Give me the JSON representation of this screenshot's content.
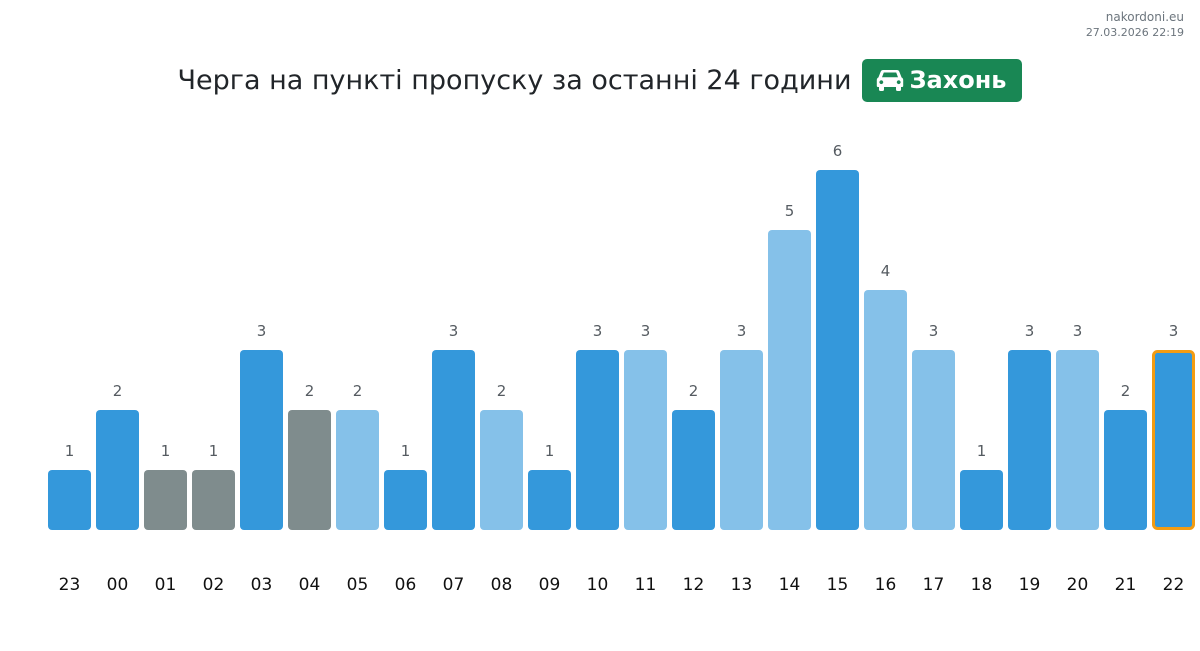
{
  "brand": {
    "site": "nakordoni.eu",
    "timestamp": "27.03.2026 22:19"
  },
  "header": {
    "title": "Черга на пункті пропуску за останні 24 години",
    "checkpoint": "Захонь",
    "checkpoint_icon": "car-icon"
  },
  "colors": {
    "bar_dark": "#3498db",
    "bar_light": "#85c1e9",
    "bar_gray": "#7f8c8d",
    "highlight_border": "#f39c12",
    "badge": "#198754"
  },
  "chart_data": {
    "type": "bar",
    "title": "Черга на пункті пропуску за останні 24 години",
    "xlabel": "",
    "ylabel": "",
    "categories": [
      "23",
      "00",
      "01",
      "02",
      "03",
      "04",
      "05",
      "06",
      "07",
      "08",
      "09",
      "10",
      "11",
      "12",
      "13",
      "14",
      "15",
      "16",
      "17",
      "18",
      "19",
      "20",
      "21",
      "22"
    ],
    "values": [
      1,
      2,
      1,
      1,
      3,
      2,
      2,
      1,
      3,
      2,
      1,
      3,
      3,
      2,
      3,
      5,
      6,
      4,
      3,
      1,
      3,
      3,
      2,
      3
    ],
    "bar_color_keys": [
      "dark",
      "dark",
      "gray",
      "gray",
      "dark",
      "gray",
      "light",
      "dark",
      "dark",
      "light",
      "dark",
      "dark",
      "light",
      "dark",
      "light",
      "light",
      "dark",
      "light",
      "light",
      "dark",
      "dark",
      "light",
      "dark",
      "dark"
    ],
    "highlighted_category": "22",
    "ylim": [
      0,
      6
    ],
    "grid": false,
    "show_y_axis": false
  }
}
